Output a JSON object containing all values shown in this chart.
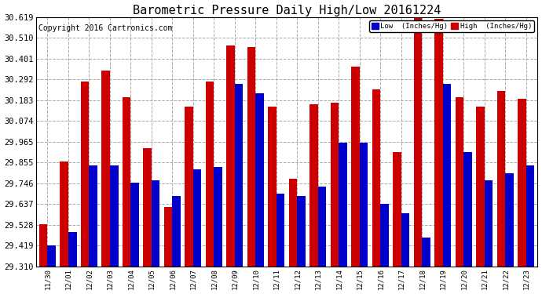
{
  "title": "Barometric Pressure Daily High/Low 20161224",
  "copyright": "Copyright 2016 Cartronics.com",
  "categories": [
    "11/30",
    "12/01",
    "12/02",
    "12/03",
    "12/04",
    "12/05",
    "12/06",
    "12/07",
    "12/08",
    "12/09",
    "12/10",
    "12/11",
    "12/12",
    "12/13",
    "12/14",
    "12/15",
    "12/16",
    "12/17",
    "12/18",
    "12/19",
    "12/20",
    "12/21",
    "12/22",
    "12/23"
  ],
  "low_values": [
    29.42,
    29.49,
    29.84,
    29.84,
    29.75,
    29.76,
    29.68,
    29.82,
    29.83,
    30.27,
    30.22,
    29.69,
    29.68,
    29.73,
    29.96,
    29.96,
    29.64,
    29.59,
    29.46,
    30.27,
    29.91,
    29.76,
    29.8,
    29.84
  ],
  "high_values": [
    29.53,
    29.86,
    30.28,
    30.34,
    30.2,
    29.93,
    29.62,
    30.15,
    30.28,
    30.47,
    30.46,
    30.15,
    29.77,
    30.16,
    30.17,
    30.36,
    30.24,
    29.91,
    30.62,
    30.61,
    30.2,
    30.15,
    30.23,
    30.19
  ],
  "bar_color_low": "#0000cc",
  "bar_color_high": "#cc0000",
  "background_color": "#ffffff",
  "grid_color": "#aaaaaa",
  "ylim_min": 29.31,
  "ylim_max": 30.619,
  "yticks": [
    29.31,
    29.419,
    29.528,
    29.637,
    29.746,
    29.855,
    29.965,
    30.074,
    30.183,
    30.292,
    30.401,
    30.51,
    30.619
  ],
  "legend_low_label": "Low  (Inches/Hg)",
  "legend_high_label": "High  (Inches/Hg)",
  "title_fontsize": 11,
  "copyright_fontsize": 7,
  "tick_fontsize": 6.5,
  "ytick_fontsize": 7.5
}
